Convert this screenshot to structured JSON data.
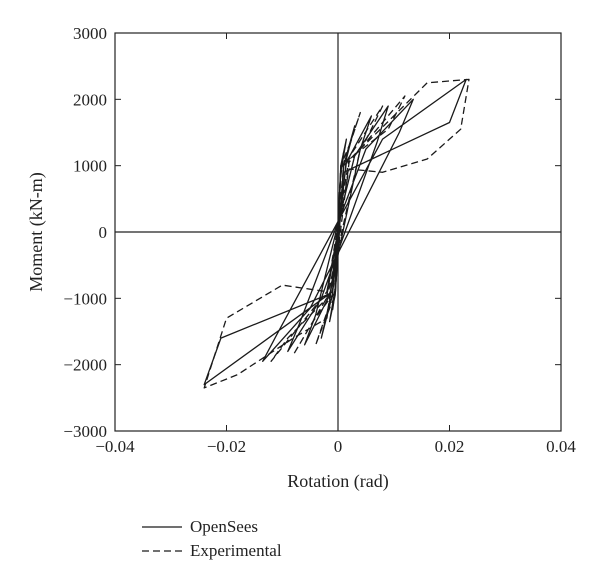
{
  "chart_data": {
    "type": "line",
    "title": "",
    "xlabel": "Rotation (rad)",
    "ylabel": "Moment (kN-m)",
    "xlim": [
      -0.04,
      0.04
    ],
    "ylim": [
      -3000,
      3000
    ],
    "x_ticks": [
      -0.04,
      -0.02,
      0,
      0.02,
      0.04
    ],
    "x_tick_labels": [
      "−0.04",
      "−0.02",
      "0",
      "0.02",
      "0.04"
    ],
    "y_ticks": [
      3000,
      2000,
      1000,
      0,
      -1000,
      -2000,
      -3000
    ],
    "y_tick_labels": [
      "3000",
      "2000",
      "1000",
      "0",
      "−1000",
      "−2000",
      "−3000"
    ],
    "grid": false,
    "zero_lines": true,
    "legend_position": "bottom-left, below plot",
    "series": [
      {
        "name": "OpenSees",
        "style": "solid",
        "color": "#1a1a1a",
        "points": [
          [
            0,
            0
          ],
          [
            0.0005,
            900
          ],
          [
            0.0015,
            1400
          ],
          [
            0.0005,
            1000
          ],
          [
            -0.0005,
            -850
          ],
          [
            -0.0015,
            -1350
          ],
          [
            -0.0005,
            -950
          ],
          [
            0.001,
            1000
          ],
          [
            0.003,
            1600
          ],
          [
            0.0015,
            1100
          ],
          [
            -0.001,
            -950
          ],
          [
            -0.003,
            -1600
          ],
          [
            -0.0015,
            -1050
          ],
          [
            0.0015,
            1050
          ],
          [
            0.006,
            1750
          ],
          [
            0.004,
            1250
          ],
          [
            -0.0015,
            -950
          ],
          [
            -0.006,
            -1700
          ],
          [
            -0.004,
            -1250
          ],
          [
            0.003,
            1150
          ],
          [
            0.009,
            1900
          ],
          [
            0.007,
            1350
          ],
          [
            -0.003,
            -1000
          ],
          [
            -0.009,
            -1800
          ],
          [
            -0.007,
            -1400
          ],
          [
            0.005,
            1250
          ],
          [
            0.0135,
            2000
          ],
          [
            0.011,
            1500
          ],
          [
            -0.005,
            -1150
          ],
          [
            -0.0135,
            -1950
          ],
          [
            -0.011,
            -1550
          ],
          [
            0.008,
            1400
          ],
          [
            0.023,
            2300
          ],
          [
            0.02,
            1650
          ],
          [
            0.001,
            900
          ],
          [
            -0.001,
            -900
          ],
          [
            -0.024,
            -2300
          ],
          [
            -0.021,
            -1600
          ],
          [
            -0.002,
            -950
          ],
          [
            0,
            0
          ]
        ]
      },
      {
        "name": "Experimental",
        "style": "dashed",
        "color": "#1a1a1a",
        "points": [
          [
            0,
            0
          ],
          [
            0.0003,
            700
          ],
          [
            0.001,
            1200
          ],
          [
            0.0005,
            900
          ],
          [
            -0.0003,
            -700
          ],
          [
            -0.001,
            -1200
          ],
          [
            -0.0005,
            -900
          ],
          [
            0.0005,
            900
          ],
          [
            0.004,
            1800
          ],
          [
            0.002,
            1300
          ],
          [
            0.0005,
            1000
          ],
          [
            -0.0005,
            -850
          ],
          [
            -0.004,
            -1700
          ],
          [
            -0.002,
            -1250
          ],
          [
            -0.0005,
            -950
          ],
          [
            0.001,
            1000
          ],
          [
            0.008,
            1900
          ],
          [
            0.0045,
            1300
          ],
          [
            0.001,
            1000
          ],
          [
            -0.001,
            -850
          ],
          [
            -0.008,
            -1850
          ],
          [
            -0.0045,
            -1350
          ],
          [
            -0.001,
            -950
          ],
          [
            0.002,
            1050
          ],
          [
            0.012,
            2050
          ],
          [
            0.009,
            1550
          ],
          [
            0.002,
            1100
          ],
          [
            -0.002,
            -900
          ],
          [
            -0.012,
            -1950
          ],
          [
            -0.009,
            -1600
          ],
          [
            -0.002,
            -1000
          ],
          [
            0.004,
            1250
          ],
          [
            0.016,
            2250
          ],
          [
            0.0235,
            2300
          ],
          [
            0.022,
            1550
          ],
          [
            0.016,
            1100
          ],
          [
            0.008,
            900
          ],
          [
            0.002,
            950
          ],
          [
            -0.002,
            -900
          ],
          [
            -0.01,
            -800
          ],
          [
            -0.02,
            -1300
          ],
          [
            -0.024,
            -2350
          ],
          [
            -0.018,
            -2150
          ],
          [
            -0.008,
            -1600
          ],
          [
            -0.002,
            -1300
          ],
          [
            0,
            0
          ]
        ]
      }
    ]
  },
  "legend": [
    {
      "label": "OpenSees",
      "style": "solid"
    },
    {
      "label": "Experimental",
      "style": "dashed"
    }
  ]
}
